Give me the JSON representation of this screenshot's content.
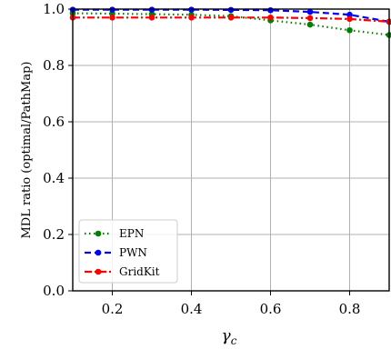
{
  "chart_data": {
    "type": "line",
    "xlabel_main": "γ",
    "xlabel_sub": "c",
    "ylabel": "MDL ratio (optimal/PathMap)",
    "xlim": [
      0.1,
      0.9
    ],
    "ylim": [
      0.0,
      1.0
    ],
    "grid": true,
    "legend_placement": "lower-left",
    "x_ticks": [
      0.2,
      0.4,
      0.6,
      0.8
    ],
    "x_tick_labels": [
      "0.2",
      "0.4",
      "0.6",
      "0.8"
    ],
    "y_ticks": [
      0.0,
      0.2,
      0.4,
      0.6,
      0.8,
      1.0
    ],
    "y_tick_labels": [
      "0.0",
      "0.2",
      "0.4",
      "0.6",
      "0.8",
      "1.0"
    ],
    "x": [
      0.1,
      0.2,
      0.3,
      0.4,
      0.5,
      0.6,
      0.7,
      0.8,
      0.9
    ],
    "series": [
      {
        "name": "EPN",
        "color": "#008000",
        "dash": "dotted",
        "values": [
          0.985,
          0.984,
          0.982,
          0.98,
          0.975,
          0.96,
          0.945,
          0.925,
          0.908
        ]
      },
      {
        "name": "PWN",
        "color": "#0000ff",
        "dash": "dashed",
        "values": [
          0.998,
          0.998,
          0.998,
          0.998,
          0.997,
          0.996,
          0.99,
          0.98,
          0.955
        ]
      },
      {
        "name": "GridKit",
        "color": "#ff0000",
        "dash": "dashdot",
        "values": [
          0.97,
          0.97,
          0.97,
          0.97,
          0.97,
          0.97,
          0.968,
          0.965,
          0.955
        ]
      }
    ]
  }
}
